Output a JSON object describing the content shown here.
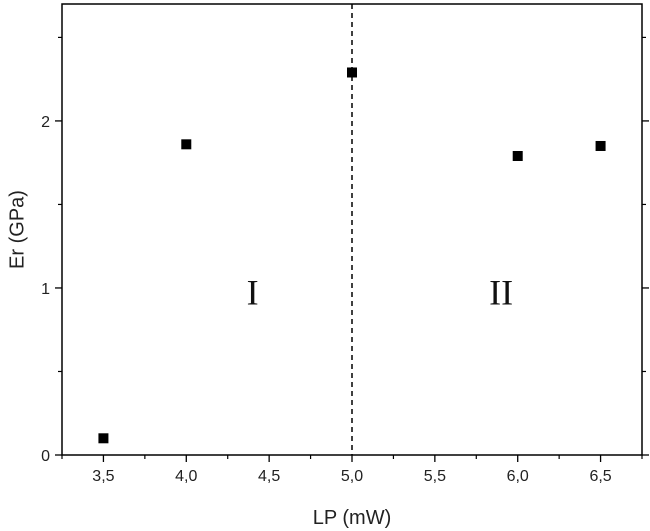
{
  "chart_data": {
    "type": "scatter",
    "title": "",
    "xlabel": "LP (mW)",
    "ylabel": "Er (GPa)",
    "xlim": [
      3.25,
      6.75
    ],
    "ylim": [
      0,
      2.7
    ],
    "x_ticks": [
      3.5,
      4.0,
      4.5,
      5.0,
      5.5,
      6.0,
      6.5
    ],
    "x_tick_labels": [
      "3,5",
      "4,0",
      "4,5",
      "5,0",
      "5,5",
      "6,0",
      "6,5"
    ],
    "y_ticks": [
      0,
      1,
      2
    ],
    "y_tick_labels": [
      "0",
      "1",
      "2"
    ],
    "grid": false,
    "legend": "none",
    "marker": "square",
    "marker_color": "#000000",
    "series": [
      {
        "x": [
          3.5,
          4.0,
          5.0,
          6.0,
          6.5
        ],
        "y": [
          0.1,
          1.86,
          2.29,
          1.79,
          1.85
        ]
      }
    ],
    "reference_line": {
      "x": 5.0,
      "style": "dashed"
    },
    "region_labels": [
      {
        "text": "I",
        "x": 4.4,
        "y": 0.9
      },
      {
        "text": "II",
        "x": 5.9,
        "y": 0.9
      }
    ]
  }
}
